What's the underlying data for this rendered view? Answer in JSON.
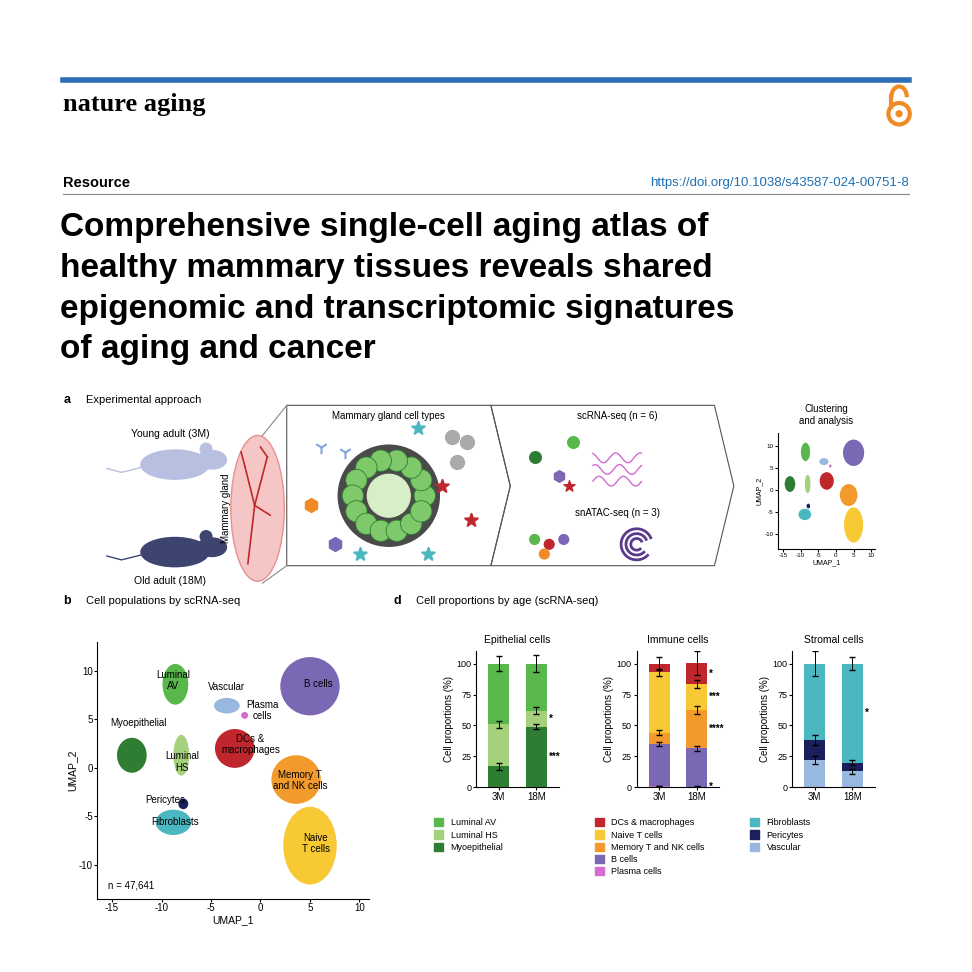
{
  "header": {
    "journal": "nature aging",
    "article_type": "Resource",
    "doi": "https://doi.org/10.1038/s43587-024-00751-8",
    "title_lines": [
      "Comprehensive single-cell aging atlas of",
      "healthy mammary tissues reveals shared",
      "epigenomic and transcriptomic signatures",
      "of aging and cancer"
    ]
  },
  "panel_a": {
    "label": "a",
    "title": "Experimental approach",
    "young": "Young adult (3M)",
    "old": "Old adult (18M)",
    "organ": "Mammary gland",
    "cell_types": "Mammary gland cell types",
    "scrna": "scRNA-seq (n = 6)",
    "snatac": "snATAC-seq (n = 3)",
    "clustering": "Clustering\nand analysis"
  },
  "panel_d": {
    "label": "d",
    "title": "Cell proportions by age (scRNA-seq)"
  },
  "chart_data": [
    {
      "type": "scatter",
      "panel_label": "b",
      "title": "Cell populations by scRNA-seq",
      "x_label": "UMAP_1",
      "y_label": "UMAP_2",
      "annotation": "n = 47,641",
      "xlim": [
        -16.5,
        11
      ],
      "ylim": [
        -13.5,
        13
      ],
      "xticks": [
        -15,
        -10,
        -5,
        0,
        5,
        10
      ],
      "yticks": [
        -10,
        -5,
        0,
        5,
        10
      ],
      "clusters": [
        {
          "name": "Luminal AV",
          "label": "Luminal\nAV",
          "color": "#58b84c",
          "center": [
            -8.6,
            8.6
          ],
          "size": [
            2.6,
            4.2
          ],
          "label_xy": [
            -8.8,
            9.0
          ]
        },
        {
          "name": "Myoepithelial",
          "label": "Myoepithelial",
          "color": "#2e7d32",
          "center": [
            -13,
            1.3
          ],
          "size": [
            3.0,
            3.6
          ],
          "label_xy": [
            -12.3,
            4.6
          ]
        },
        {
          "name": "Luminal HS",
          "label": "Luminal\nHS",
          "color": "#a5d17c",
          "center": [
            -8.0,
            1.3
          ],
          "size": [
            1.6,
            4.2
          ],
          "label_xy": [
            -7.9,
            0.6
          ]
        },
        {
          "name": "Fibroblasts",
          "label": "Fibroblasts",
          "color": "#4bb7c0",
          "center": [
            -8.8,
            -5.6
          ],
          "size": [
            3.6,
            2.6
          ],
          "label_xy": [
            -8.6,
            -5.6
          ]
        },
        {
          "name": "Pericytes",
          "label": "Pericytes",
          "color": "#1b1f5c",
          "center": [
            -7.8,
            -3.7
          ],
          "size": [
            1.0,
            1.1
          ],
          "label_xy": [
            -9.6,
            -3.3
          ]
        },
        {
          "name": "Vascular",
          "label": "Vascular",
          "color": "#99b8e0",
          "center": [
            -3.4,
            6.4
          ],
          "size": [
            2.6,
            1.6
          ],
          "label_xy": [
            -3.4,
            8.3
          ]
        },
        {
          "name": "Plasma cells",
          "label": "Plasma\ncells",
          "color": "#d36bd1",
          "center": [
            -1.6,
            5.4
          ],
          "size": [
            0.7,
            0.7
          ],
          "label_xy": [
            0.2,
            5.9
          ]
        },
        {
          "name": "DCs & macrophages",
          "label": "DCs &\nmacrophages",
          "color": "#c0272d",
          "center": [
            -2.6,
            2.0
          ],
          "size": [
            4.0,
            4.0
          ],
          "label_xy": [
            -1.0,
            2.4
          ]
        },
        {
          "name": "B cells",
          "label": "B cells",
          "color": "#7b68b5",
          "center": [
            5.0,
            8.4
          ],
          "size": [
            6.0,
            6.0
          ],
          "label_xy": [
            5.8,
            8.6
          ]
        },
        {
          "name": "Memory T and NK cells",
          "label": "Memory T\nand NK cells",
          "color": "#f39a2c",
          "center": [
            3.6,
            -1.2
          ],
          "size": [
            5.0,
            5.0
          ],
          "label_xy": [
            4.0,
            -1.3
          ]
        },
        {
          "name": "Naive T cells",
          "label": "Naive\nT cells",
          "color": "#f7c934",
          "center": [
            5.0,
            -8.0
          ],
          "size": [
            5.4,
            8.0
          ],
          "label_xy": [
            5.6,
            -7.8
          ]
        }
      ]
    },
    {
      "type": "bar",
      "stacked": true,
      "title": "Epithelial cells",
      "y_label": "Cell proportions (%)",
      "categories": [
        "3M",
        "18M"
      ],
      "ylim": [
        0,
        110
      ],
      "yticks": [
        0,
        25,
        50,
        75,
        100
      ],
      "legend": "upper left",
      "series": [
        {
          "name": "Myoepithelial",
          "color": "#2e7d32",
          "values": [
            17,
            49
          ],
          "errors": [
            3,
            2
          ],
          "significance": "***"
        },
        {
          "name": "Luminal HS",
          "color": "#a5d17c",
          "values": [
            34,
            13
          ],
          "errors": [
            3,
            3
          ],
          "significance": "*"
        },
        {
          "name": "Luminal AV",
          "color": "#58b84c",
          "values": [
            49,
            38
          ],
          "errors": [
            6,
            7
          ],
          "significance": null
        }
      ]
    },
    {
      "type": "bar",
      "stacked": true,
      "title": "Immune cells",
      "y_label": "Cell proportions (%)",
      "categories": [
        "3M",
        "18M"
      ],
      "ylim": [
        0,
        110
      ],
      "yticks": [
        0,
        25,
        50,
        75,
        100
      ],
      "legend": "upper left",
      "series": [
        {
          "name": "Plasma cells",
          "color": "#d36bd1",
          "values": [
            1,
            0.5
          ],
          "errors": [
            0.3,
            0.2
          ],
          "significance": "*"
        },
        {
          "name": "B cells",
          "color": "#7b68b5",
          "values": [
            34,
            31
          ],
          "errors": [
            2,
            2
          ],
          "significance": null
        },
        {
          "name": "Memory T and NK cells",
          "color": "#f39a2c",
          "values": [
            9,
            31
          ],
          "errors": [
            2,
            3
          ],
          "significance": "****"
        },
        {
          "name": "Naive T cells",
          "color": "#f7c934",
          "values": [
            49,
            21
          ],
          "errors": [
            3,
            3
          ],
          "significance": "***"
        },
        {
          "name": "DCs & macrophages",
          "color": "#c0272d",
          "values": [
            7,
            17
          ],
          "errors": [
            5,
            10
          ],
          "significance": "*"
        }
      ]
    },
    {
      "type": "bar",
      "stacked": true,
      "title": "Stromal cells",
      "y_label": "Cell proportions (%)",
      "categories": [
        "3M",
        "18M"
      ],
      "ylim": [
        0,
        110
      ],
      "yticks": [
        0,
        25,
        50,
        75,
        100
      ],
      "legend": "upper left",
      "series": [
        {
          "name": "Vascular",
          "color": "#99b8e0",
          "values": [
            22,
            13
          ],
          "errors": [
            3,
            2
          ],
          "significance": null
        },
        {
          "name": "Pericytes",
          "color": "#1b1f5c",
          "values": [
            16,
            7
          ],
          "errors": [
            4,
            2
          ],
          "significance": null
        },
        {
          "name": "Fibroblasts",
          "color": "#4bb7c0",
          "values": [
            62,
            80
          ],
          "errors": [
            10,
            5
          ],
          "significance": "*"
        }
      ]
    }
  ]
}
